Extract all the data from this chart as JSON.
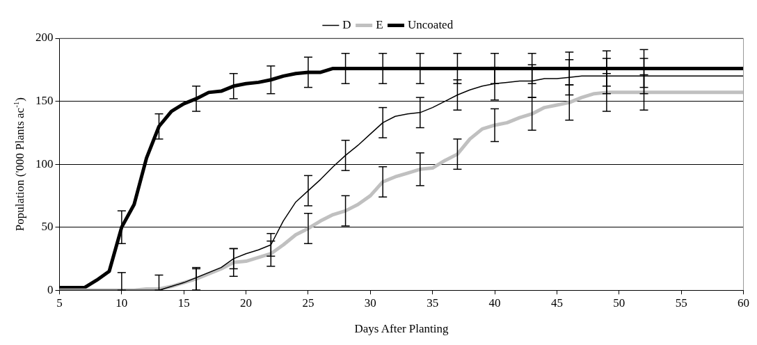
{
  "chart_data": {
    "type": "line",
    "xlabel": "Days After Planting",
    "ylabel": "Population ('000 Plants ac$^{-1}$)",
    "x": [
      5,
      6,
      7,
      8,
      9,
      10,
      11,
      12,
      13,
      14,
      15,
      16,
      17,
      18,
      19,
      20,
      21,
      22,
      23,
      24,
      25,
      26,
      27,
      28,
      29,
      30,
      31,
      32,
      33,
      34,
      35,
      36,
      37,
      38,
      39,
      40,
      41,
      42,
      43,
      44,
      45,
      46,
      47,
      48,
      49,
      50,
      51,
      52,
      53,
      54,
      55,
      56,
      57,
      58,
      59,
      60
    ],
    "xlim": [
      5,
      60
    ],
    "xticks": [
      5,
      10,
      15,
      20,
      25,
      30,
      35,
      40,
      45,
      50,
      55,
      60
    ],
    "ylim": [
      0,
      200
    ],
    "yticks": [
      0,
      50,
      100,
      150,
      200
    ],
    "grid": "y",
    "legend": "top",
    "series": [
      {
        "name": "D",
        "color": "#000000",
        "values": [
          0,
          0,
          0,
          0,
          0,
          0,
          0,
          0,
          0,
          3,
          6,
          10,
          14,
          18,
          25,
          29,
          32,
          36,
          55,
          70,
          79,
          88,
          98,
          107,
          115,
          124,
          133,
          138,
          140,
          141,
          145,
          150,
          155,
          159,
          162,
          164,
          165,
          166,
          166,
          168,
          168,
          169,
          170,
          170,
          170,
          170,
          170,
          170,
          170,
          170,
          170,
          170,
          170,
          170,
          170,
          170
        ],
        "errors": [
          null,
          null,
          null,
          null,
          null,
          [
            0,
            14
          ],
          null,
          null,
          [
            0,
            12
          ],
          null,
          null,
          [
            0,
            18
          ],
          null,
          null,
          8,
          null,
          null,
          9,
          null,
          null,
          12,
          null,
          null,
          12,
          null,
          null,
          12,
          null,
          null,
          12,
          null,
          null,
          12,
          null,
          null,
          13,
          null,
          null,
          13,
          null,
          null,
          14,
          null,
          null,
          14,
          null,
          null,
          14,
          null,
          null,
          null,
          null,
          null,
          null,
          null,
          null
        ]
      },
      {
        "name": "E",
        "color": "#c0c0c0",
        "values": [
          0,
          0,
          0,
          0,
          0,
          0,
          0,
          1,
          1,
          3,
          6,
          9,
          13,
          17,
          22,
          23,
          26,
          29,
          36,
          44,
          49,
          55,
          60,
          63,
          68,
          75,
          86,
          90,
          93,
          96,
          97,
          103,
          108,
          120,
          128,
          131,
          133,
          137,
          140,
          145,
          147,
          149,
          153,
          156,
          157,
          157,
          157,
          157,
          157,
          157,
          157,
          157,
          157,
          157,
          157,
          157
        ],
        "errors": [
          null,
          null,
          null,
          null,
          null,
          null,
          null,
          null,
          null,
          null,
          null,
          [
            0,
            17
          ],
          null,
          null,
          11,
          null,
          null,
          10,
          null,
          null,
          12,
          null,
          null,
          12,
          null,
          null,
          12,
          null,
          null,
          13,
          null,
          null,
          12,
          null,
          null,
          13,
          null,
          null,
          13,
          null,
          null,
          14,
          null,
          null,
          15,
          null,
          null,
          14,
          null,
          null,
          null,
          null,
          null,
          null,
          null,
          null
        ]
      },
      {
        "name": "Uncoated",
        "color": "#000000",
        "values": [
          2,
          2,
          2,
          8,
          15,
          50,
          68,
          105,
          130,
          142,
          148,
          152,
          157,
          158,
          162,
          164,
          165,
          167,
          170,
          172,
          173,
          173,
          176,
          176,
          176,
          176,
          176,
          176,
          176,
          176,
          176,
          176,
          176,
          176,
          176,
          176,
          176,
          176,
          176,
          176,
          176,
          176,
          176,
          176,
          176,
          176,
          176,
          176,
          176,
          176,
          176,
          176,
          176,
          176,
          176,
          176
        ],
        "errors": [
          null,
          null,
          null,
          null,
          null,
          13,
          null,
          null,
          10,
          null,
          null,
          10,
          null,
          null,
          10,
          null,
          null,
          11,
          null,
          null,
          12,
          null,
          null,
          12,
          null,
          null,
          12,
          null,
          null,
          12,
          null,
          null,
          12,
          null,
          null,
          12,
          null,
          null,
          12,
          null,
          null,
          13,
          null,
          null,
          14,
          null,
          null,
          15,
          null,
          null,
          null,
          null,
          null,
          null,
          null,
          null
        ]
      }
    ]
  }
}
